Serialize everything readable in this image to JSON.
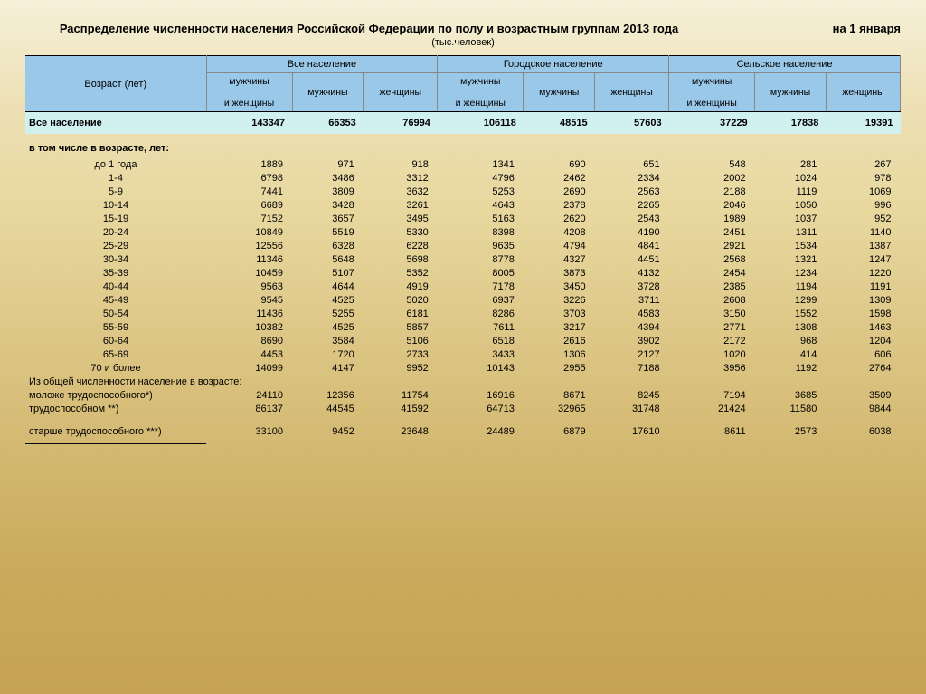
{
  "title": {
    "main": "Распределение численности населения Российской Федерации по полу и возрастным группам 2013 года",
    "right": "на  1 января"
  },
  "subtitle": "(тыс.человек)",
  "headers": {
    "age": "Возраст (лет)",
    "groups": [
      "Все население",
      "Городское население",
      "Сельское население"
    ],
    "sub_mw": "мужчины и женщины",
    "sub_m": "мужчины",
    "sub_w": "женщины"
  },
  "total_label": "Все население",
  "total_values": [
    "143347",
    "66353",
    "76994",
    "106118",
    "48515",
    "57603",
    "37229",
    "17838",
    "19391"
  ],
  "section_label": "в том числе в возрасте, лет:",
  "rows": [
    {
      "label": "до 1 года",
      "v": [
        "1889",
        "971",
        "918",
        "1341",
        "690",
        "651",
        "548",
        "281",
        "267"
      ]
    },
    {
      "label": "1-4",
      "v": [
        "6798",
        "3486",
        "3312",
        "4796",
        "2462",
        "2334",
        "2002",
        "1024",
        "978"
      ]
    },
    {
      "label": "5-9",
      "v": [
        "7441",
        "3809",
        "3632",
        "5253",
        "2690",
        "2563",
        "2188",
        "1119",
        "1069"
      ]
    },
    {
      "label": "10-14",
      "v": [
        "6689",
        "3428",
        "3261",
        "4643",
        "2378",
        "2265",
        "2046",
        "1050",
        "996"
      ]
    },
    {
      "label": "15-19",
      "v": [
        "7152",
        "3657",
        "3495",
        "5163",
        "2620",
        "2543",
        "1989",
        "1037",
        "952"
      ]
    },
    {
      "label": "20-24",
      "v": [
        "10849",
        "5519",
        "5330",
        "8398",
        "4208",
        "4190",
        "2451",
        "1311",
        "1140"
      ]
    },
    {
      "label": "25-29",
      "v": [
        "12556",
        "6328",
        "6228",
        "9635",
        "4794",
        "4841",
        "2921",
        "1534",
        "1387"
      ]
    },
    {
      "label": "30-34",
      "v": [
        "11346",
        "5648",
        "5698",
        "8778",
        "4327",
        "4451",
        "2568",
        "1321",
        "1247"
      ]
    },
    {
      "label": "35-39",
      "v": [
        "10459",
        "5107",
        "5352",
        "8005",
        "3873",
        "4132",
        "2454",
        "1234",
        "1220"
      ]
    },
    {
      "label": "40-44",
      "v": [
        "9563",
        "4644",
        "4919",
        "7178",
        "3450",
        "3728",
        "2385",
        "1194",
        "1191"
      ]
    },
    {
      "label": "45-49",
      "v": [
        "9545",
        "4525",
        "5020",
        "6937",
        "3226",
        "3711",
        "2608",
        "1299",
        "1309"
      ]
    },
    {
      "label": "50-54",
      "v": [
        "11436",
        "5255",
        "6181",
        "8286",
        "3703",
        "4583",
        "3150",
        "1552",
        "1598"
      ]
    },
    {
      "label": "55-59",
      "v": [
        "10382",
        "4525",
        "5857",
        "7611",
        "3217",
        "4394",
        "2771",
        "1308",
        "1463"
      ]
    },
    {
      "label": "60-64",
      "v": [
        "8690",
        "3584",
        "5106",
        "6518",
        "2616",
        "3902",
        "2172",
        "968",
        "1204"
      ]
    },
    {
      "label": "65-69",
      "v": [
        "4453",
        "1720",
        "2733",
        "3433",
        "1306",
        "2127",
        "1020",
        "414",
        "606"
      ]
    },
    {
      "label": "70 и более",
      "v": [
        "14099",
        "4147",
        "9952",
        "10143",
        "2955",
        "7188",
        "3956",
        "1192",
        "2764"
      ]
    }
  ],
  "summary_label": "Из общей численности население в возрасте:",
  "summary_rows": [
    {
      "label": "моложе трудоспособного*)",
      "v": [
        "24110",
        "12356",
        "11754",
        "16916",
        "8671",
        "8245",
        "7194",
        "3685",
        "3509"
      ]
    },
    {
      "label": "трудоспособном **)",
      "v": [
        "86137",
        "44545",
        "41592",
        "64713",
        "32965",
        "31748",
        "21424",
        "11580",
        "9844"
      ]
    },
    {
      "label": "",
      "v": [
        "",
        "",
        "",
        "",
        "",
        "",
        "",
        "",
        ""
      ],
      "spacer": true
    },
    {
      "label": "старше трудоспособного ***)",
      "v": [
        "33100",
        "9452",
        "23648",
        "24489",
        "6879",
        "17610",
        "8611",
        "2573",
        "6038"
      ]
    }
  ],
  "colors": {
    "header_bg": "#9ac8e8",
    "total_bg": "#d1f1f0"
  }
}
